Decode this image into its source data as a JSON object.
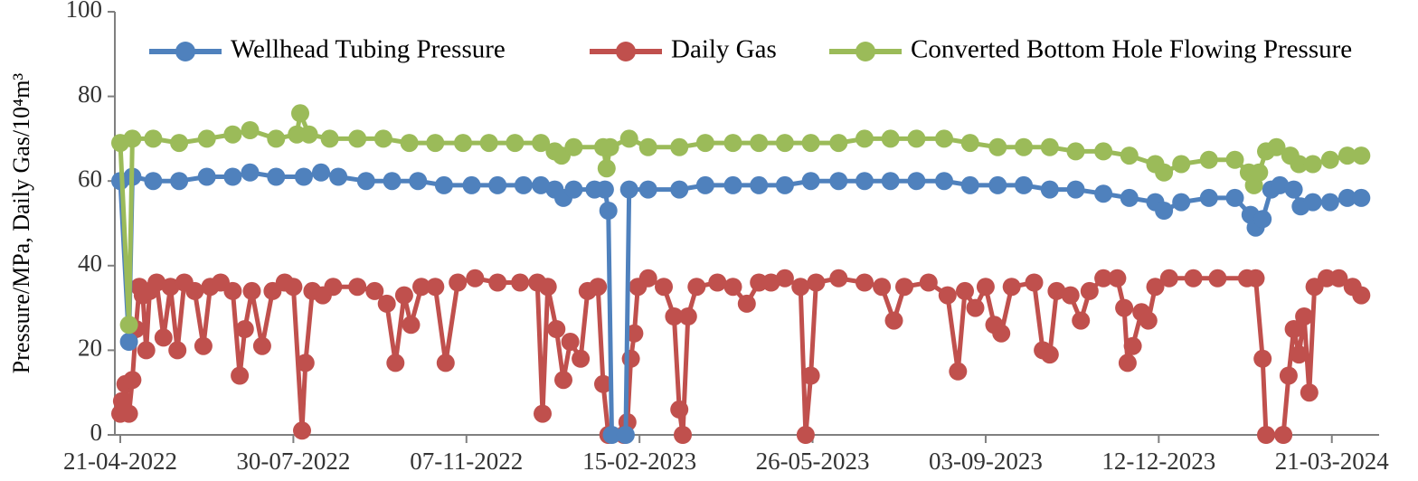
{
  "chart_data": {
    "type": "line",
    "title": "",
    "xlabel": "",
    "ylabel": "Pressure/MPa, Daily Gas/10⁴m³",
    "ylim": [
      0,
      100
    ],
    "yticks": [
      "0",
      "20",
      "40",
      "60",
      "80",
      "100"
    ],
    "xlim": [
      "2022-04-21",
      "2024-04-10"
    ],
    "xtick_labels": [
      "21-04-2022",
      "30-07-2022",
      "07-11-2022",
      "15-02-2023",
      "26-05-2023",
      "03-09-2023",
      "12-12-2023",
      "21-03-2024"
    ],
    "xtick_dates": [
      "2022-04-21",
      "2022-07-30",
      "2022-11-07",
      "2023-02-15",
      "2023-05-26",
      "2023-09-03",
      "2023-12-12",
      "2024-03-21"
    ],
    "grid": false,
    "legend_position": "top",
    "series": [
      {
        "name": "Wellhead Tubing Pressure",
        "color": "#4f81bd",
        "points": [
          [
            "2022-04-21",
            60
          ],
          [
            "2022-04-26",
            22
          ],
          [
            "2022-04-28",
            61
          ],
          [
            "2022-05-10",
            60
          ],
          [
            "2022-05-25",
            60
          ],
          [
            "2022-06-10",
            61
          ],
          [
            "2022-06-25",
            61
          ],
          [
            "2022-07-05",
            62
          ],
          [
            "2022-07-20",
            61
          ],
          [
            "2022-08-05",
            61
          ],
          [
            "2022-08-15",
            62
          ],
          [
            "2022-08-25",
            61
          ],
          [
            "2022-09-10",
            60
          ],
          [
            "2022-09-25",
            60
          ],
          [
            "2022-10-10",
            60
          ],
          [
            "2022-10-25",
            59
          ],
          [
            "2022-11-10",
            59
          ],
          [
            "2022-11-25",
            59
          ],
          [
            "2022-12-10",
            59
          ],
          [
            "2022-12-20",
            59
          ],
          [
            "2022-12-28",
            58
          ],
          [
            "2023-01-02",
            56
          ],
          [
            "2023-01-08",
            58
          ],
          [
            "2023-01-20",
            58
          ],
          [
            "2023-01-26",
            58
          ],
          [
            "2023-01-28",
            53
          ],
          [
            "2023-01-30",
            0
          ],
          [
            "2023-02-07",
            0
          ],
          [
            "2023-02-09",
            58
          ],
          [
            "2023-02-20",
            58
          ],
          [
            "2023-03-10",
            58
          ],
          [
            "2023-03-25",
            59
          ],
          [
            "2023-04-10",
            59
          ],
          [
            "2023-04-25",
            59
          ],
          [
            "2023-05-10",
            59
          ],
          [
            "2023-05-25",
            60
          ],
          [
            "2023-06-10",
            60
          ],
          [
            "2023-06-25",
            60
          ],
          [
            "2023-07-10",
            60
          ],
          [
            "2023-07-25",
            60
          ],
          [
            "2023-08-10",
            60
          ],
          [
            "2023-08-25",
            59
          ],
          [
            "2023-09-10",
            59
          ],
          [
            "2023-09-25",
            59
          ],
          [
            "2023-10-10",
            58
          ],
          [
            "2023-10-25",
            58
          ],
          [
            "2023-11-10",
            57
          ],
          [
            "2023-11-25",
            56
          ],
          [
            "2023-12-10",
            55
          ],
          [
            "2023-12-15",
            53
          ],
          [
            "2023-12-25",
            55
          ],
          [
            "2024-01-10",
            56
          ],
          [
            "2024-01-25",
            56
          ],
          [
            "2024-02-03",
            52
          ],
          [
            "2024-02-06",
            49
          ],
          [
            "2024-02-10",
            51
          ],
          [
            "2024-02-15",
            58
          ],
          [
            "2024-02-20",
            59
          ],
          [
            "2024-02-28",
            58
          ],
          [
            "2024-03-03",
            54
          ],
          [
            "2024-03-10",
            55
          ],
          [
            "2024-03-20",
            55
          ],
          [
            "2024-03-30",
            56
          ],
          [
            "2024-04-07",
            56
          ]
        ]
      },
      {
        "name": "Daily Gas",
        "color": "#c0504d",
        "points": [
          [
            "2022-04-21",
            5
          ],
          [
            "2022-04-22",
            8
          ],
          [
            "2022-04-24",
            12
          ],
          [
            "2022-04-26",
            5
          ],
          [
            "2022-04-28",
            13
          ],
          [
            "2022-04-30",
            25
          ],
          [
            "2022-05-02",
            35
          ],
          [
            "2022-05-04",
            33
          ],
          [
            "2022-05-06",
            20
          ],
          [
            "2022-05-08",
            34
          ],
          [
            "2022-05-12",
            36
          ],
          [
            "2022-05-16",
            23
          ],
          [
            "2022-05-20",
            35
          ],
          [
            "2022-05-24",
            20
          ],
          [
            "2022-05-28",
            36
          ],
          [
            "2022-06-03",
            34
          ],
          [
            "2022-06-08",
            21
          ],
          [
            "2022-06-12",
            35
          ],
          [
            "2022-06-18",
            36
          ],
          [
            "2022-06-25",
            34
          ],
          [
            "2022-06-29",
            14
          ],
          [
            "2022-07-02",
            25
          ],
          [
            "2022-07-06",
            34
          ],
          [
            "2022-07-12",
            21
          ],
          [
            "2022-07-18",
            34
          ],
          [
            "2022-07-25",
            36
          ],
          [
            "2022-07-30",
            35
          ],
          [
            "2022-08-04",
            1
          ],
          [
            "2022-08-06",
            17
          ],
          [
            "2022-08-10",
            34
          ],
          [
            "2022-08-16",
            33
          ],
          [
            "2022-08-22",
            35
          ],
          [
            "2022-09-05",
            35
          ],
          [
            "2022-09-15",
            34
          ],
          [
            "2022-09-22",
            31
          ],
          [
            "2022-09-27",
            17
          ],
          [
            "2022-10-02",
            33
          ],
          [
            "2022-10-06",
            26
          ],
          [
            "2022-10-12",
            35
          ],
          [
            "2022-10-20",
            35
          ],
          [
            "2022-10-26",
            17
          ],
          [
            "2022-11-02",
            36
          ],
          [
            "2022-11-12",
            37
          ],
          [
            "2022-11-25",
            36
          ],
          [
            "2022-12-08",
            36
          ],
          [
            "2022-12-18",
            36
          ],
          [
            "2022-12-21",
            5
          ],
          [
            "2022-12-24",
            35
          ],
          [
            "2022-12-29",
            25
          ],
          [
            "2023-01-02",
            13
          ],
          [
            "2023-01-06",
            22
          ],
          [
            "2023-01-12",
            18
          ],
          [
            "2023-01-16",
            34
          ],
          [
            "2023-01-22",
            35
          ],
          [
            "2023-01-25",
            12
          ],
          [
            "2023-01-28",
            0
          ],
          [
            "2023-02-06",
            0
          ],
          [
            "2023-02-08",
            3
          ],
          [
            "2023-02-10",
            18
          ],
          [
            "2023-02-12",
            24
          ],
          [
            "2023-02-14",
            35
          ],
          [
            "2023-02-20",
            37
          ],
          [
            "2023-03-01",
            35
          ],
          [
            "2023-03-07",
            28
          ],
          [
            "2023-03-10",
            6
          ],
          [
            "2023-03-12",
            0
          ],
          [
            "2023-03-15",
            28
          ],
          [
            "2023-03-20",
            35
          ],
          [
            "2023-04-01",
            36
          ],
          [
            "2023-04-10",
            35
          ],
          [
            "2023-04-18",
            31
          ],
          [
            "2023-04-25",
            36
          ],
          [
            "2023-05-02",
            36
          ],
          [
            "2023-05-10",
            37
          ],
          [
            "2023-05-19",
            35
          ],
          [
            "2023-05-22",
            0
          ],
          [
            "2023-05-25",
            14
          ],
          [
            "2023-05-28",
            36
          ],
          [
            "2023-06-10",
            37
          ],
          [
            "2023-06-25",
            36
          ],
          [
            "2023-07-05",
            35
          ],
          [
            "2023-07-12",
            27
          ],
          [
            "2023-07-18",
            35
          ],
          [
            "2023-08-01",
            36
          ],
          [
            "2023-08-12",
            33
          ],
          [
            "2023-08-18",
            15
          ],
          [
            "2023-08-22",
            34
          ],
          [
            "2023-08-28",
            30
          ],
          [
            "2023-09-03",
            35
          ],
          [
            "2023-09-08",
            26
          ],
          [
            "2023-09-12",
            24
          ],
          [
            "2023-09-18",
            35
          ],
          [
            "2023-10-01",
            36
          ],
          [
            "2023-10-06",
            20
          ],
          [
            "2023-10-10",
            19
          ],
          [
            "2023-10-14",
            34
          ],
          [
            "2023-10-22",
            33
          ],
          [
            "2023-10-28",
            27
          ],
          [
            "2023-11-02",
            34
          ],
          [
            "2023-11-10",
            37
          ],
          [
            "2023-11-18",
            37
          ],
          [
            "2023-11-22",
            30
          ],
          [
            "2023-11-24",
            17
          ],
          [
            "2023-11-27",
            21
          ],
          [
            "2023-12-02",
            29
          ],
          [
            "2023-12-06",
            27
          ],
          [
            "2023-12-10",
            35
          ],
          [
            "2023-12-18",
            37
          ],
          [
            "2024-01-01",
            37
          ],
          [
            "2024-01-15",
            37
          ],
          [
            "2024-02-01",
            37
          ],
          [
            "2024-02-06",
            37
          ],
          [
            "2024-02-10",
            18
          ],
          [
            "2024-02-12",
            0
          ],
          [
            "2024-02-22",
            0
          ],
          [
            "2024-02-25",
            14
          ],
          [
            "2024-02-28",
            25
          ],
          [
            "2024-03-02",
            19
          ],
          [
            "2024-03-05",
            28
          ],
          [
            "2024-03-08",
            10
          ],
          [
            "2024-03-11",
            35
          ],
          [
            "2024-03-18",
            37
          ],
          [
            "2024-03-25",
            37
          ],
          [
            "2024-04-02",
            35
          ],
          [
            "2024-04-07",
            33
          ]
        ]
      },
      {
        "name": "Converted Bottom Hole Flowing Pressure",
        "color": "#9bbb59",
        "points": [
          [
            "2022-04-21",
            69
          ],
          [
            "2022-04-26",
            26
          ],
          [
            "2022-04-28",
            70
          ],
          [
            "2022-05-10",
            70
          ],
          [
            "2022-05-25",
            69
          ],
          [
            "2022-06-10",
            70
          ],
          [
            "2022-06-25",
            71
          ],
          [
            "2022-07-05",
            72
          ],
          [
            "2022-07-20",
            70
          ],
          [
            "2022-08-01",
            71
          ],
          [
            "2022-08-03",
            76
          ],
          [
            "2022-08-08",
            71
          ],
          [
            "2022-08-20",
            70
          ],
          [
            "2022-09-05",
            70
          ],
          [
            "2022-09-20",
            70
          ],
          [
            "2022-10-05",
            69
          ],
          [
            "2022-10-20",
            69
          ],
          [
            "2022-11-05",
            69
          ],
          [
            "2022-11-20",
            69
          ],
          [
            "2022-12-05",
            69
          ],
          [
            "2022-12-20",
            69
          ],
          [
            "2022-12-28",
            67
          ],
          [
            "2023-01-01",
            66
          ],
          [
            "2023-01-08",
            68
          ],
          [
            "2023-01-25",
            68
          ],
          [
            "2023-01-27",
            63
          ],
          [
            "2023-01-29",
            68
          ],
          [
            "2023-02-09",
            70
          ],
          [
            "2023-02-20",
            68
          ],
          [
            "2023-03-10",
            68
          ],
          [
            "2023-03-25",
            69
          ],
          [
            "2023-04-10",
            69
          ],
          [
            "2023-04-25",
            69
          ],
          [
            "2023-05-10",
            69
          ],
          [
            "2023-05-25",
            69
          ],
          [
            "2023-06-10",
            69
          ],
          [
            "2023-06-25",
            70
          ],
          [
            "2023-07-10",
            70
          ],
          [
            "2023-07-25",
            70
          ],
          [
            "2023-08-10",
            70
          ],
          [
            "2023-08-25",
            69
          ],
          [
            "2023-09-10",
            68
          ],
          [
            "2023-09-25",
            68
          ],
          [
            "2023-10-10",
            68
          ],
          [
            "2023-10-25",
            67
          ],
          [
            "2023-11-10",
            67
          ],
          [
            "2023-11-25",
            66
          ],
          [
            "2023-12-10",
            64
          ],
          [
            "2023-12-15",
            62
          ],
          [
            "2023-12-25",
            64
          ],
          [
            "2024-01-10",
            65
          ],
          [
            "2024-01-25",
            65
          ],
          [
            "2024-02-02",
            62
          ],
          [
            "2024-02-05",
            59
          ],
          [
            "2024-02-08",
            62
          ],
          [
            "2024-02-12",
            67
          ],
          [
            "2024-02-18",
            68
          ],
          [
            "2024-02-26",
            66
          ],
          [
            "2024-03-02",
            64
          ],
          [
            "2024-03-10",
            64
          ],
          [
            "2024-03-20",
            65
          ],
          [
            "2024-03-30",
            66
          ],
          [
            "2024-04-07",
            66
          ]
        ]
      }
    ]
  }
}
